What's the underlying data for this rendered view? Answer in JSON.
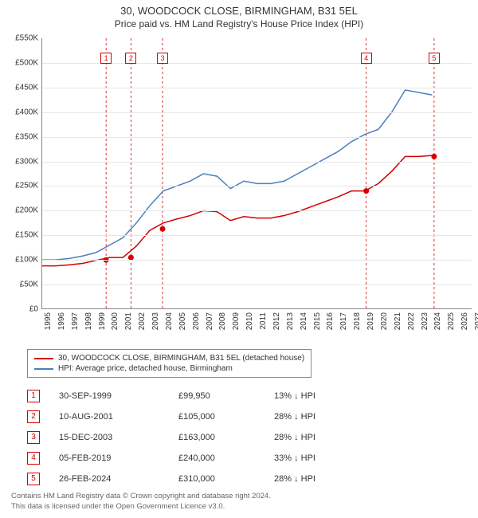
{
  "title": {
    "main": "30, WOODCOCK CLOSE, BIRMINGHAM, B31 5EL",
    "sub": "Price paid vs. HM Land Registry's House Price Index (HPI)"
  },
  "chart": {
    "type": "line",
    "background_color": "#ffffff",
    "grid_color": "#e6e6e6",
    "axis_color": "#888888",
    "text_color": "#333333",
    "label_fontsize": 10,
    "x": {
      "lim": [
        1995,
        2027
      ],
      "ticks": [
        1995,
        1996,
        1997,
        1998,
        1999,
        2000,
        2001,
        2002,
        2003,
        2004,
        2005,
        2006,
        2007,
        2008,
        2009,
        2010,
        2011,
        2012,
        2013,
        2014,
        2015,
        2016,
        2017,
        2018,
        2019,
        2020,
        2021,
        2022,
        2023,
        2024,
        2025,
        2026,
        2027
      ]
    },
    "y": {
      "lim": [
        0,
        550000
      ],
      "tick_step": 50000,
      "tick_labels": [
        "£0",
        "£50K",
        "£100K",
        "£150K",
        "£200K",
        "£250K",
        "£300K",
        "£350K",
        "£400K",
        "£450K",
        "£500K",
        "£550K"
      ]
    },
    "series": [
      {
        "id": "hpi",
        "label": "HPI: Average price, detached house, Birmingham",
        "color": "#4a7fbf",
        "line_width": 1.5,
        "points": [
          [
            1995,
            100000
          ],
          [
            1996,
            100000
          ],
          [
            1997,
            103000
          ],
          [
            1998,
            108000
          ],
          [
            1999,
            115000
          ],
          [
            2000,
            130000
          ],
          [
            2001,
            145000
          ],
          [
            2002,
            175000
          ],
          [
            2003,
            210000
          ],
          [
            2004,
            240000
          ],
          [
            2005,
            250000
          ],
          [
            2006,
            260000
          ],
          [
            2007,
            275000
          ],
          [
            2008,
            270000
          ],
          [
            2009,
            245000
          ],
          [
            2010,
            260000
          ],
          [
            2011,
            255000
          ],
          [
            2012,
            255000
          ],
          [
            2013,
            260000
          ],
          [
            2014,
            275000
          ],
          [
            2015,
            290000
          ],
          [
            2016,
            305000
          ],
          [
            2017,
            320000
          ],
          [
            2018,
            340000
          ],
          [
            2019,
            355000
          ],
          [
            2020,
            365000
          ],
          [
            2021,
            400000
          ],
          [
            2022,
            445000
          ],
          [
            2023,
            440000
          ],
          [
            2024,
            435000
          ]
        ]
      },
      {
        "id": "property",
        "label": "30, WOODCOCK CLOSE, BIRMINGHAM, B31 5EL (detached house)",
        "color": "#d40000",
        "line_width": 1.5,
        "points": [
          [
            1995,
            88000
          ],
          [
            1996,
            88000
          ],
          [
            1997,
            90000
          ],
          [
            1998,
            93000
          ],
          [
            1999,
            99000
          ],
          [
            2000,
            105000
          ],
          [
            2001,
            105000
          ],
          [
            2002,
            128000
          ],
          [
            2003,
            160000
          ],
          [
            2004,
            175000
          ],
          [
            2005,
            183000
          ],
          [
            2006,
            190000
          ],
          [
            2007,
            200000
          ],
          [
            2008,
            198000
          ],
          [
            2009,
            180000
          ],
          [
            2010,
            188000
          ],
          [
            2011,
            185000
          ],
          [
            2012,
            185000
          ],
          [
            2013,
            190000
          ],
          [
            2014,
            198000
          ],
          [
            2015,
            208000
          ],
          [
            2016,
            218000
          ],
          [
            2017,
            228000
          ],
          [
            2018,
            240000
          ],
          [
            2019,
            240000
          ],
          [
            2020,
            255000
          ],
          [
            2021,
            280000
          ],
          [
            2022,
            310000
          ],
          [
            2023,
            310000
          ],
          [
            2024,
            312000
          ]
        ],
        "sale_markers": [
          {
            "n": "1",
            "year": 1999.75,
            "price": 99950
          },
          {
            "n": "2",
            "year": 2001.6,
            "price": 105000
          },
          {
            "n": "3",
            "year": 2003.95,
            "price": 163000
          },
          {
            "n": "4",
            "year": 2019.1,
            "price": 240000
          },
          {
            "n": "5",
            "year": 2024.15,
            "price": 310000
          }
        ]
      }
    ],
    "vlines": {
      "color": "#d40000",
      "dash": "3,3",
      "years": [
        1999.75,
        2001.6,
        2003.95,
        2019.1,
        2024.15
      ]
    },
    "marker_box_top_offset": 18
  },
  "legend": {
    "items": [
      {
        "color": "#d40000",
        "label": "30, WOODCOCK CLOSE, BIRMINGHAM, B31 5EL (detached house)"
      },
      {
        "color": "#4a7fbf",
        "label": "HPI: Average price, detached house, Birmingham"
      }
    ]
  },
  "sales": [
    {
      "n": "1",
      "date": "30-SEP-1999",
      "price": "£99,950",
      "diff": "13% ↓ HPI"
    },
    {
      "n": "2",
      "date": "10-AUG-2001",
      "price": "£105,000",
      "diff": "28% ↓ HPI"
    },
    {
      "n": "3",
      "date": "15-DEC-2003",
      "price": "£163,000",
      "diff": "28% ↓ HPI"
    },
    {
      "n": "4",
      "date": "05-FEB-2019",
      "price": "£240,000",
      "diff": "33% ↓ HPI"
    },
    {
      "n": "5",
      "date": "26-FEB-2024",
      "price": "£310,000",
      "diff": "28% ↓ HPI"
    }
  ],
  "footer": {
    "line1": "Contains HM Land Registry data © Crown copyright and database right 2024.",
    "line2": "This data is licensed under the Open Government Licence v3.0."
  }
}
